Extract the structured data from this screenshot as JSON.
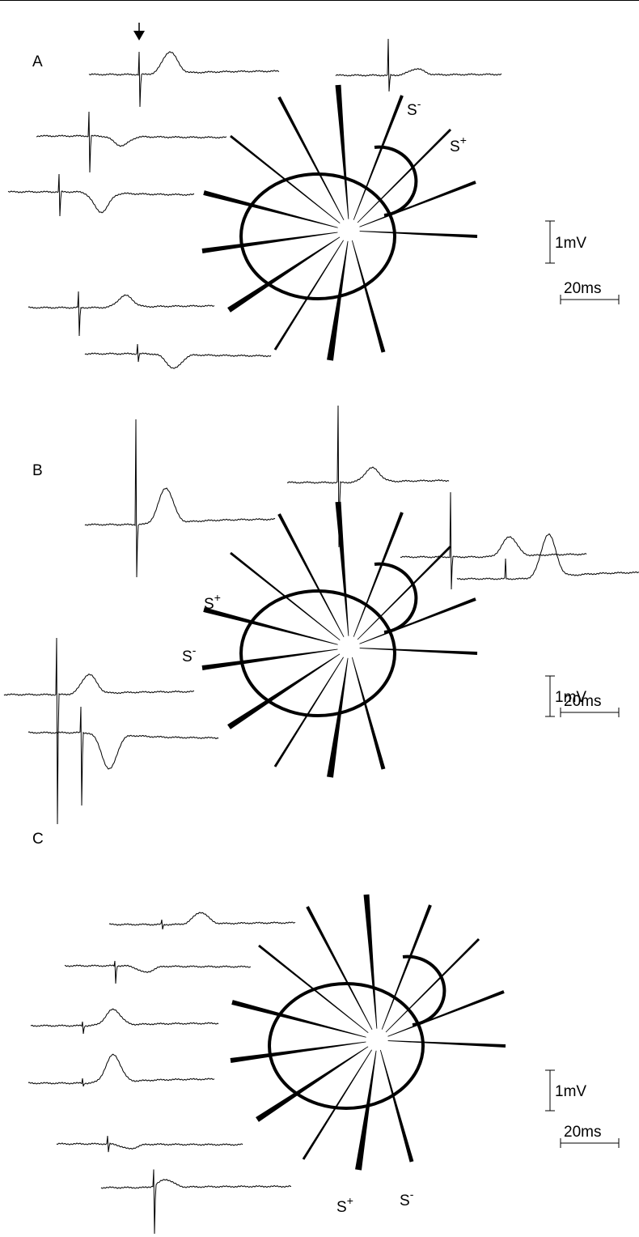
{
  "panels": [
    {
      "label": "A",
      "stimulation_sites": [
        {
          "name": "S",
          "sign": "-"
        },
        {
          "name": "S",
          "sign": "+"
        }
      ],
      "scale_bars": {
        "voltage": "1mV",
        "time": "20ms"
      }
    },
    {
      "label": "B",
      "stimulation_sites": [
        {
          "name": "S",
          "sign": "+"
        },
        {
          "name": "S",
          "sign": "-"
        }
      ],
      "scale_bars": {
        "voltage": "1mV",
        "time": "20ms"
      }
    },
    {
      "label": "C",
      "stimulation_sites": [
        {
          "name": "S",
          "sign": "+"
        },
        {
          "name": "S",
          "sign": "-"
        }
      ],
      "scale_bars": {
        "voltage": "1mV",
        "time": "20ms"
      }
    }
  ]
}
